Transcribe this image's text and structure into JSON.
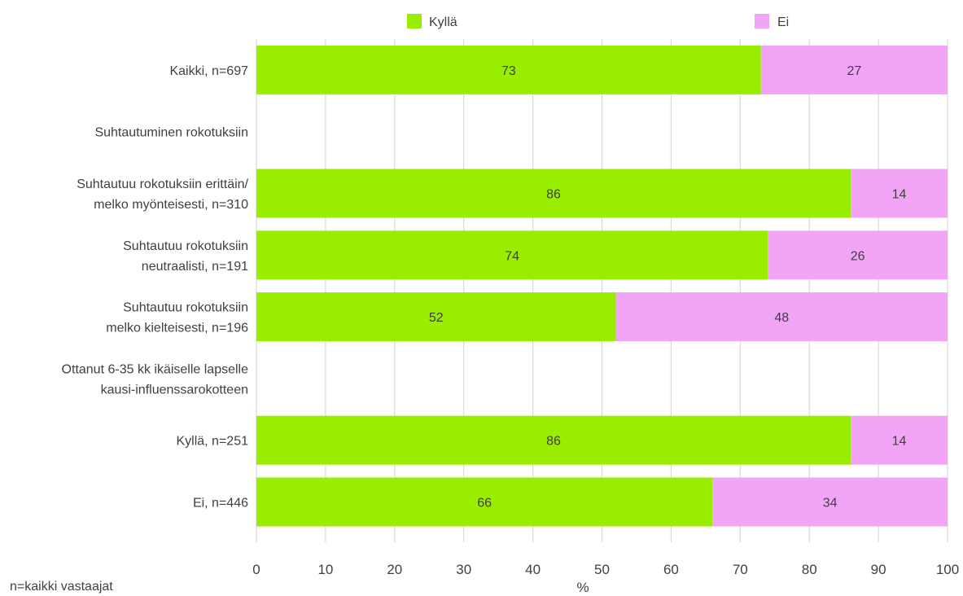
{
  "chart_data": {
    "type": "bar",
    "orientation": "horizontal",
    "stacked": true,
    "categories": [
      [
        "Kaikki, n=697"
      ],
      [
        "Suhtautuminen rokotuksiin"
      ],
      [
        "Suhtautuu rokotuksiin erittäin/",
        "melko myönteisesti, n=310"
      ],
      [
        "Suhtautuu rokotuksiin",
        "neutraalisti, n=191"
      ],
      [
        "Suhtautuu rokotuksiin",
        "melko kielteisesti, n=196"
      ],
      [
        "Ottanut 6-35 kk ikäiselle lapselle",
        "kausi-influenssarokotteen"
      ],
      [
        "Kyllä, n=251"
      ],
      [
        "Ei, n=446"
      ]
    ],
    "series": [
      {
        "name": "Kyllä",
        "color": "#99ee00",
        "values": [
          73,
          null,
          86,
          74,
          52,
          null,
          86,
          66
        ]
      },
      {
        "name": "Ei",
        "color": "#f2a5f7",
        "values": [
          27,
          null,
          14,
          26,
          48,
          null,
          14,
          34
        ]
      }
    ],
    "xlabel": "%",
    "xlim": [
      0,
      100
    ],
    "xticks": [
      0,
      10,
      20,
      30,
      40,
      50,
      60,
      70,
      80,
      90,
      100
    ],
    "grid": true,
    "legend_position": "top"
  },
  "footnote": "n=kaikki vastaajat"
}
